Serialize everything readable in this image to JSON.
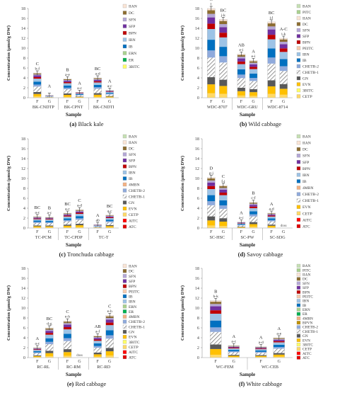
{
  "figure": {
    "ylabel": "Concentration (μmol/g DW)",
    "xlabel": "Sample",
    "sample_labels": [
      "F",
      "G"
    ]
  },
  "chart_data": [
    {
      "id": "a",
      "type": "bar",
      "stacked": true,
      "caption_letter": "(a)",
      "caption_text": "Black kale",
      "ylim": [
        0,
        18
      ],
      "yticks": [
        0,
        2,
        4,
        6,
        8,
        10,
        12,
        14,
        16,
        18
      ],
      "groups": [
        "BK-CNDTP",
        "BK-CPNT",
        "BK-CNDTI"
      ],
      "legend": [
        "IIAN",
        "DC",
        "SFN",
        "SFP",
        "BPN",
        "IBN",
        "IB",
        "ERN",
        "ER",
        "3BITC"
      ],
      "bars": [
        {
          "group": 0,
          "sample": "F",
          "total": 5.0,
          "top_letter": "C",
          "bottom_letter": "b-f"
        },
        {
          "group": 0,
          "sample": "G",
          "total": 0.5,
          "top_letter": "A",
          "bottom_letter": ""
        },
        {
          "group": 1,
          "sample": "F",
          "total": 3.8,
          "top_letter": "B",
          "bottom_letter": "a-e"
        },
        {
          "group": 1,
          "sample": "G",
          "total": 1.1,
          "top_letter": "A",
          "bottom_letter": "a-c"
        },
        {
          "group": 2,
          "sample": "F",
          "total": 4.0,
          "top_letter": "BC",
          "bottom_letter": "a-d"
        },
        {
          "group": 2,
          "sample": "G",
          "total": 1.5,
          "top_letter": "A",
          "bottom_letter": "a-c"
        }
      ]
    },
    {
      "id": "b",
      "type": "bar",
      "stacked": true,
      "caption_letter": "(b)",
      "caption_text": "Wild cabbage",
      "ylim": [
        0,
        18
      ],
      "yticks": [
        0,
        2,
        4,
        6,
        8,
        10,
        12,
        14,
        16,
        18
      ],
      "groups": [
        "WDC-8707",
        "WDC-GRU",
        "WDC-8714"
      ],
      "legend": [
        "BAN",
        "PITC",
        "IIAN",
        "DC",
        "SFN",
        "SFP",
        "BPN",
        "PEITC",
        "IBN",
        "IB",
        "CHETB-2",
        "CHETB-1",
        "GN",
        "EVN",
        "3BITC",
        "CETP"
      ],
      "bars": [
        {
          "group": 0,
          "sample": "F",
          "total": 18.0,
          "top_letter": "C",
          "bottom_letter": "l"
        },
        {
          "group": 0,
          "sample": "G",
          "total": 15.8,
          "top_letter": "BC",
          "bottom_letter": "j-k"
        },
        {
          "group": 1,
          "sample": "F",
          "total": 8.8,
          "top_letter": "AB",
          "bottom_letter": "e-i"
        },
        {
          "group": 1,
          "sample": "G",
          "total": 7.5,
          "top_letter": "A",
          "bottom_letter": "e-i"
        },
        {
          "group": 2,
          "sample": "F",
          "total": 15.3,
          "top_letter": "BC",
          "bottom_letter": "j-l"
        },
        {
          "group": 2,
          "sample": "G",
          "total": 12.0,
          "top_letter": "A-C",
          "bottom_letter": "i-k"
        }
      ]
    },
    {
      "id": "c",
      "type": "bar",
      "stacked": true,
      "caption_letter": "(c)",
      "caption_text": "Tronchuda cabbage",
      "ylim": [
        0,
        18
      ],
      "yticks": [
        0,
        2,
        4,
        6,
        8,
        10,
        12,
        14,
        16,
        18
      ],
      "groups": [
        "TC-PCM",
        "TC-CPDP",
        "TC-T"
      ],
      "legend": [
        "BAN",
        "IIAN",
        "DC",
        "SFN",
        "SFP",
        "BPN",
        "IBN",
        "IB",
        "4MBN",
        "CHETB-2",
        "CHETB-1",
        "GN",
        "EVN",
        "CETP",
        "AITC",
        "ATC"
      ],
      "bars": [
        {
          "group": 0,
          "sample": "F",
          "total": 2.3,
          "top_letter": "BC",
          "bottom_letter": "a-c"
        },
        {
          "group": 0,
          "sample": "G",
          "total": 2.2,
          "top_letter": "B",
          "bottom_letter": "a-c"
        },
        {
          "group": 1,
          "sample": "F",
          "total": 3.0,
          "top_letter": "BC",
          "bottom_letter": "a-c"
        },
        {
          "group": 1,
          "sample": "G",
          "total": 3.7,
          "top_letter": "C",
          "bottom_letter": "a-d"
        },
        {
          "group": 2,
          "sample": "F",
          "total": 0.7,
          "top_letter": "A",
          "bottom_letter": "ab"
        },
        {
          "group": 2,
          "sample": "G",
          "total": 2.6,
          "top_letter": "BC",
          "bottom_letter": "a-c"
        }
      ]
    },
    {
      "id": "d",
      "type": "bar",
      "stacked": true,
      "caption_letter": "(d)",
      "caption_text": "Savoy cabbage",
      "ylim": [
        0,
        18
      ],
      "yticks": [
        0,
        2,
        4,
        6,
        8,
        10,
        12,
        14,
        16,
        18
      ],
      "groups": [
        "SC-HSC",
        "SC-PW",
        "SC-SDG"
      ],
      "legend": [
        "BAN",
        "IIAN",
        "DC",
        "SFN",
        "SFP",
        "BPN",
        "IBN",
        "IB",
        "4MBN",
        "CHETB-2",
        "CHETB-1",
        "EVN",
        "CETP",
        "AITC",
        "ATC"
      ],
      "bars": [
        {
          "group": 0,
          "sample": "F",
          "total": 10.2,
          "top_letter": "D",
          "bottom_letter": "g-j"
        },
        {
          "group": 0,
          "sample": "G",
          "total": 8.6,
          "top_letter": "C",
          "bottom_letter": "f-j"
        },
        {
          "group": 1,
          "sample": "F",
          "total": 1.2,
          "top_letter": "A",
          "bottom_letter": "a-c"
        },
        {
          "group": 1,
          "sample": "G",
          "total": 5.2,
          "top_letter": "B",
          "bottom_letter": "c-f"
        },
        {
          "group": 2,
          "sample": "F",
          "total": 3.0,
          "top_letter": "A",
          "bottom_letter": "a-d"
        },
        {
          "group": 2,
          "sample": "G",
          "total": 0,
          "top_letter": "",
          "bottom_letter": "",
          "note": "dnss"
        }
      ]
    },
    {
      "id": "e",
      "type": "bar",
      "stacked": true,
      "caption_letter": "(e)",
      "caption_text": "Red cabbage",
      "ylim": [
        0,
        18
      ],
      "yticks": [
        0,
        2,
        4,
        6,
        8,
        10,
        12,
        14,
        16,
        18
      ],
      "groups": [
        "RC-RL",
        "RC-RM",
        "RC-RD"
      ],
      "legend": [
        "IIAN",
        "DC",
        "SFN",
        "SFP",
        "BPN",
        "PEITC",
        "IB",
        "IBN",
        "ERN",
        "ER",
        "4MBN",
        "CHETB-2",
        "CHETB-1",
        "GN",
        "EVN",
        "3BITC",
        "CETP",
        "AITC",
        "ATC"
      ],
      "bars": [
        {
          "group": 0,
          "sample": "F",
          "total": 2.0,
          "top_letter": "A",
          "bottom_letter": "a-c"
        },
        {
          "group": 0,
          "sample": "G",
          "total": 6.0,
          "top_letter": "BC",
          "bottom_letter": "d-g"
        },
        {
          "group": 1,
          "sample": "F",
          "total": 7.4,
          "top_letter": "C",
          "bottom_letter": "e-h"
        },
        {
          "group": 1,
          "sample": "G",
          "total": 0,
          "top_letter": "",
          "bottom_letter": "",
          "note": "dnss"
        },
        {
          "group": 2,
          "sample": "F",
          "total": 4.4,
          "top_letter": "AB",
          "bottom_letter": "a-f"
        },
        {
          "group": 2,
          "sample": "G",
          "total": 8.5,
          "top_letter": "C",
          "bottom_letter": "e-h"
        }
      ]
    },
    {
      "id": "f",
      "type": "bar",
      "stacked": true,
      "caption_letter": "(f)",
      "caption_text": "White cabbage",
      "ylim": [
        0,
        18
      ],
      "yticks": [
        0,
        2,
        4,
        6,
        8,
        10,
        12,
        14,
        16,
        18
      ],
      "groups": [
        "WC-FEM",
        "WC-CEB"
      ],
      "legend": [
        "BAN",
        "PITC",
        "IIAN",
        "DC",
        "SFN",
        "SFP",
        "BPN",
        "PEITC",
        "IBN",
        "IB",
        "ERN",
        "ER",
        "4MBN",
        "BPVN",
        "CHETB-2",
        "CHETB-1",
        "GN",
        "EVN",
        "3BITC",
        "CETP",
        "AITC",
        "ATC"
      ],
      "bars": [
        {
          "group": 0,
          "sample": "F",
          "total": 11.5,
          "top_letter": "B",
          "bottom_letter": "h-k"
        },
        {
          "group": 0,
          "sample": "G",
          "total": 2.4,
          "top_letter": "A",
          "bottom_letter": "a-c"
        },
        {
          "group": 1,
          "sample": "F",
          "total": 2.2,
          "top_letter": "A",
          "bottom_letter": "a-d"
        },
        {
          "group": 1,
          "sample": "G",
          "total": 4.0,
          "top_letter": "A",
          "bottom_letter": "a-e"
        }
      ]
    }
  ],
  "component_colors": {
    "BAN": "#c6e0b4",
    "PITC": "#a9d18e",
    "IIAN": "#fbe5d6",
    "DC": "#8c6d31",
    "SFN": "#b4a7d6",
    "SFP": "#7030a0",
    "BPN": "#c00000",
    "PEITC": "#f8cbad",
    "IBN": "#9dc3e6",
    "IB": "#0070c0",
    "ERN": "#a9d18e",
    "ER": "#00b050",
    "4MBN": "#f4b183",
    "BPVN": "#bf9000",
    "CHETB-2": "#8faadc",
    "CHETB-1": "#d9d9d9",
    "GN": "#595959",
    "EVN": "#ffc000",
    "3BITC": "#ffff66",
    "CETP": "#ffd966",
    "AITC": "#ff0000",
    "ATC": "#e00000"
  }
}
